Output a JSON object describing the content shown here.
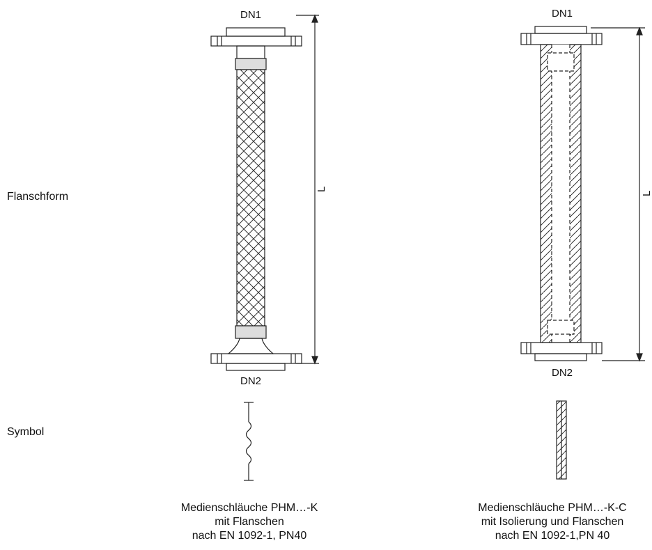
{
  "row_labels": {
    "shape": "Flanschform",
    "symbol": "Symbol"
  },
  "left": {
    "dn_top": "DN1",
    "dn_bottom": "DN2",
    "length_label": "L",
    "caption": [
      "Medienschläuche PHM…-K",
      "mit Flanschen",
      "nach EN 1092-1, PN40"
    ]
  },
  "right": {
    "dn_top": "DN1",
    "dn_bottom": "DN2",
    "length_label": "L",
    "caption": [
      "Medienschläuche PHM…-K-C",
      "mit Isolierung und Flanschen",
      "nach EN 1092-1,PN 40"
    ]
  }
}
